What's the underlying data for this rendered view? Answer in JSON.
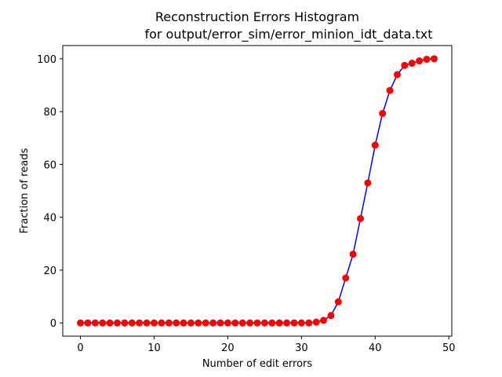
{
  "chart_data": {
    "type": "line",
    "title_line1": "Reconstruction Errors Histogram",
    "title_line2": "for output/error_sim/error_minion_idt_data.txt",
    "xlabel": "Number of edit errors",
    "ylabel": "Fraction of reads",
    "xlim": [
      -2.4,
      50.4
    ],
    "ylim": [
      -5,
      105
    ],
    "xticks": [
      0,
      10,
      20,
      30,
      40,
      50
    ],
    "yticks": [
      0,
      20,
      40,
      60,
      80,
      100
    ],
    "grid": false,
    "line_color": "#0000ff",
    "marker_color": "#ff0000",
    "x": [
      0,
      1,
      2,
      3,
      4,
      5,
      6,
      7,
      8,
      9,
      10,
      11,
      12,
      13,
      14,
      15,
      16,
      17,
      18,
      19,
      20,
      21,
      22,
      23,
      24,
      25,
      26,
      27,
      28,
      29,
      30,
      31,
      32,
      33,
      34,
      35,
      36,
      37,
      38,
      39,
      40,
      41,
      42,
      43,
      44,
      45,
      46,
      47,
      48
    ],
    "y": [
      0,
      0,
      0,
      0,
      0,
      0,
      0,
      0,
      0,
      0,
      0,
      0,
      0,
      0,
      0,
      0,
      0,
      0,
      0,
      0,
      0,
      0,
      0,
      0,
      0,
      0,
      0,
      0,
      0,
      0,
      0,
      0,
      0.3,
      1,
      2.8,
      8,
      17,
      26,
      39.5,
      53,
      67.3,
      79.3,
      88,
      94,
      97.5,
      98.3,
      99.2,
      99.8,
      100
    ]
  }
}
